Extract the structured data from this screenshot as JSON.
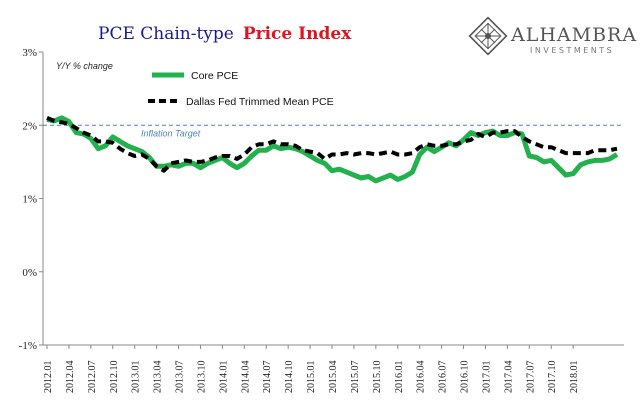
{
  "logo": {
    "name": "ALHAMBRA",
    "tagline": "INVESTMENTS"
  },
  "chart_data": {
    "type": "line",
    "title_part1": "PCE Chain-type",
    "title_part2": "Price Index",
    "unit_label": "Y/Y % change",
    "ylim": [
      -1,
      3
    ],
    "yticks": [
      "-1%",
      "0%",
      "1%",
      "2%",
      "3%"
    ],
    "grid": false,
    "legend_position": "top-left",
    "x_tick_labels": [
      "2012.01",
      "2012.04",
      "2012.07",
      "2012.10",
      "2013.01",
      "2013.04",
      "2013.07",
      "2013.10",
      "2014.01",
      "2014.04",
      "2014.07",
      "2014.10",
      "2015.01",
      "2015.04",
      "2015.07",
      "2015.10",
      "2016.01",
      "2016.04",
      "2016.07",
      "2016.10",
      "2017.01",
      "2017.04",
      "2017.07",
      "2017.10",
      "2018.01"
    ],
    "reference_line": {
      "value": 2.0,
      "label": "Inflation Target",
      "color": "#4f81bd"
    },
    "series": [
      {
        "name": "Core PCE",
        "color": "#22b14c",
        "style": "solid",
        "values": [
          2.08,
          2.06,
          2.1,
          2.05,
          1.9,
          1.88,
          1.82,
          1.68,
          1.72,
          1.84,
          1.78,
          1.72,
          1.68,
          1.64,
          1.56,
          1.44,
          1.44,
          1.46,
          1.44,
          1.48,
          1.48,
          1.42,
          1.48,
          1.52,
          1.56,
          1.48,
          1.42,
          1.48,
          1.58,
          1.66,
          1.66,
          1.72,
          1.68,
          1.7,
          1.68,
          1.64,
          1.58,
          1.52,
          1.48,
          1.38,
          1.4,
          1.36,
          1.32,
          1.28,
          1.3,
          1.24,
          1.28,
          1.32,
          1.26,
          1.3,
          1.36,
          1.6,
          1.7,
          1.64,
          1.7,
          1.76,
          1.72,
          1.8,
          1.9,
          1.86,
          1.9,
          1.92,
          1.86,
          1.86,
          1.9,
          1.88,
          1.58,
          1.56,
          1.5,
          1.52,
          1.42,
          1.32,
          1.34,
          1.46,
          1.5,
          1.52,
          1.52,
          1.54,
          1.6
        ]
      },
      {
        "name": "Dallas Fed Trimmed Mean PCE",
        "color": "#000000",
        "style": "dashed",
        "values": [
          2.1,
          2.06,
          2.04,
          2.02,
          1.96,
          1.9,
          1.86,
          1.78,
          1.78,
          1.76,
          1.68,
          1.62,
          1.58,
          1.6,
          1.54,
          1.44,
          1.38,
          1.48,
          1.5,
          1.52,
          1.5,
          1.5,
          1.52,
          1.56,
          1.58,
          1.58,
          1.54,
          1.6,
          1.7,
          1.74,
          1.74,
          1.78,
          1.74,
          1.74,
          1.72,
          1.66,
          1.64,
          1.62,
          1.54,
          1.6,
          1.6,
          1.62,
          1.6,
          1.62,
          1.62,
          1.6,
          1.62,
          1.64,
          1.6,
          1.6,
          1.62,
          1.7,
          1.74,
          1.72,
          1.72,
          1.74,
          1.74,
          1.78,
          1.8,
          1.88,
          1.84,
          1.9,
          1.9,
          1.92,
          1.92,
          1.84,
          1.78,
          1.74,
          1.7,
          1.7,
          1.66,
          1.62,
          1.62,
          1.62,
          1.62,
          1.66,
          1.66,
          1.66,
          1.68
        ]
      }
    ]
  }
}
